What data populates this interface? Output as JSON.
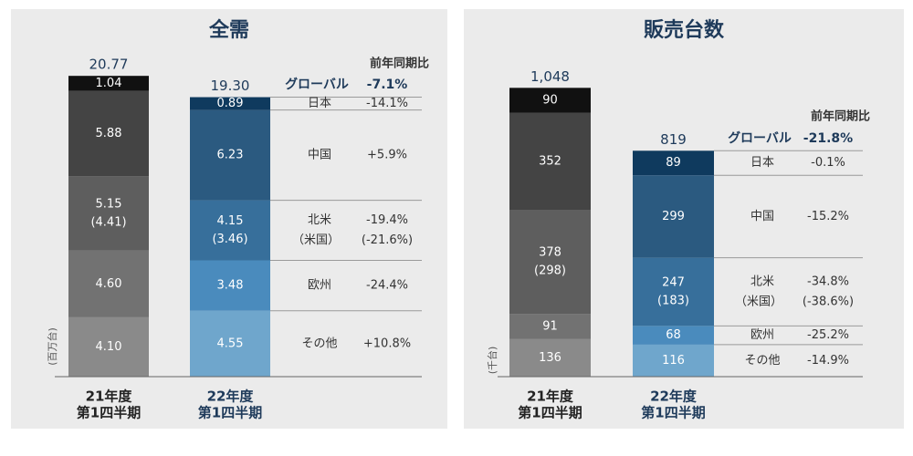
{
  "chart_data": [
    {
      "type": "stacked_bar",
      "title": "全需",
      "unit_label": "(百万台)",
      "categories": [
        [
          "21年度",
          "第1四半期"
        ],
        [
          "22年度",
          "第1四半期"
        ]
      ],
      "category_colors": [
        "#222222",
        "#1e3a5a"
      ],
      "ylim": [
        0,
        21.6
      ],
      "totals": [
        20.77,
        19.3
      ],
      "total_labels": [
        "20.77",
        "19.30"
      ],
      "yoy_header": "前年同期比",
      "global_label": "グローバル",
      "global_yoy": "-7.1%",
      "series": [
        {
          "name": "その他",
          "values": [
            4.1,
            4.55
          ],
          "value_labels": [
            "4.10",
            "4.55"
          ],
          "colors": [
            "#8a8a8a",
            "#6fa6cc"
          ],
          "yoy": "+10.8%"
        },
        {
          "name": "欧州",
          "values": [
            4.6,
            3.48
          ],
          "value_labels": [
            "4.60",
            "3.48"
          ],
          "colors": [
            "#727272",
            "#4a8bbd"
          ],
          "yoy": "-24.4%"
        },
        {
          "name": "北米",
          "sub_name": "（米国）",
          "values": [
            5.15,
            4.15
          ],
          "value_labels": [
            "5.15",
            "4.15"
          ],
          "sub_value_labels": [
            "(4.41)",
            "(3.46)"
          ],
          "colors": [
            "#5e5e5e",
            "#376f9b"
          ],
          "yoy": "-19.4%",
          "sub_yoy": "(-21.6%)"
        },
        {
          "name": "中国",
          "values": [
            5.88,
            6.23
          ],
          "value_labels": [
            "5.88",
            "6.23"
          ],
          "colors": [
            "#444444",
            "#2b5a80"
          ],
          "yoy": "+5.9%"
        },
        {
          "name": "日本",
          "values": [
            1.04,
            0.89
          ],
          "value_labels": [
            "1.04",
            "0.89"
          ],
          "colors": [
            "#111111",
            "#0f3a5e"
          ],
          "yoy": "-14.1%"
        }
      ]
    },
    {
      "type": "stacked_bar",
      "title": "販売台数",
      "unit_label": "(千台)",
      "categories": [
        [
          "21年度",
          "第1四半期"
        ],
        [
          "22年度",
          "第1四半期"
        ]
      ],
      "category_colors": [
        "#222222",
        "#1e3a5a"
      ],
      "ylim": [
        0,
        1134
      ],
      "totals": [
        1048,
        819
      ],
      "total_labels": [
        "1,048",
        "819"
      ],
      "yoy_header": "前年同期比",
      "global_label": "グローバル",
      "global_yoy": "-21.8%",
      "series": [
        {
          "name": "その他",
          "values": [
            136,
            116
          ],
          "colors": [
            "#8a8a8a",
            "#6fa6cc"
          ],
          "yoy": "-14.9%"
        },
        {
          "name": "欧州",
          "values": [
            91,
            68
          ],
          "colors": [
            "#727272",
            "#4a8bbd"
          ],
          "yoy": "-25.2%"
        },
        {
          "name": "北米",
          "sub_name": "（米国）",
          "values": [
            378,
            247
          ],
          "sub_value_labels": [
            "(298)",
            "(183)"
          ],
          "colors": [
            "#5e5e5e",
            "#376f9b"
          ],
          "yoy": "-34.8%",
          "sub_yoy": "(-38.6%)"
        },
        {
          "name": "中国",
          "values": [
            352,
            299
          ],
          "colors": [
            "#444444",
            "#2b5a80"
          ],
          "yoy": "-15.2%"
        },
        {
          "name": "日本",
          "values": [
            90,
            89
          ],
          "colors": [
            "#111111",
            "#0f3a5e"
          ],
          "yoy": "-0.1%"
        }
      ]
    }
  ]
}
